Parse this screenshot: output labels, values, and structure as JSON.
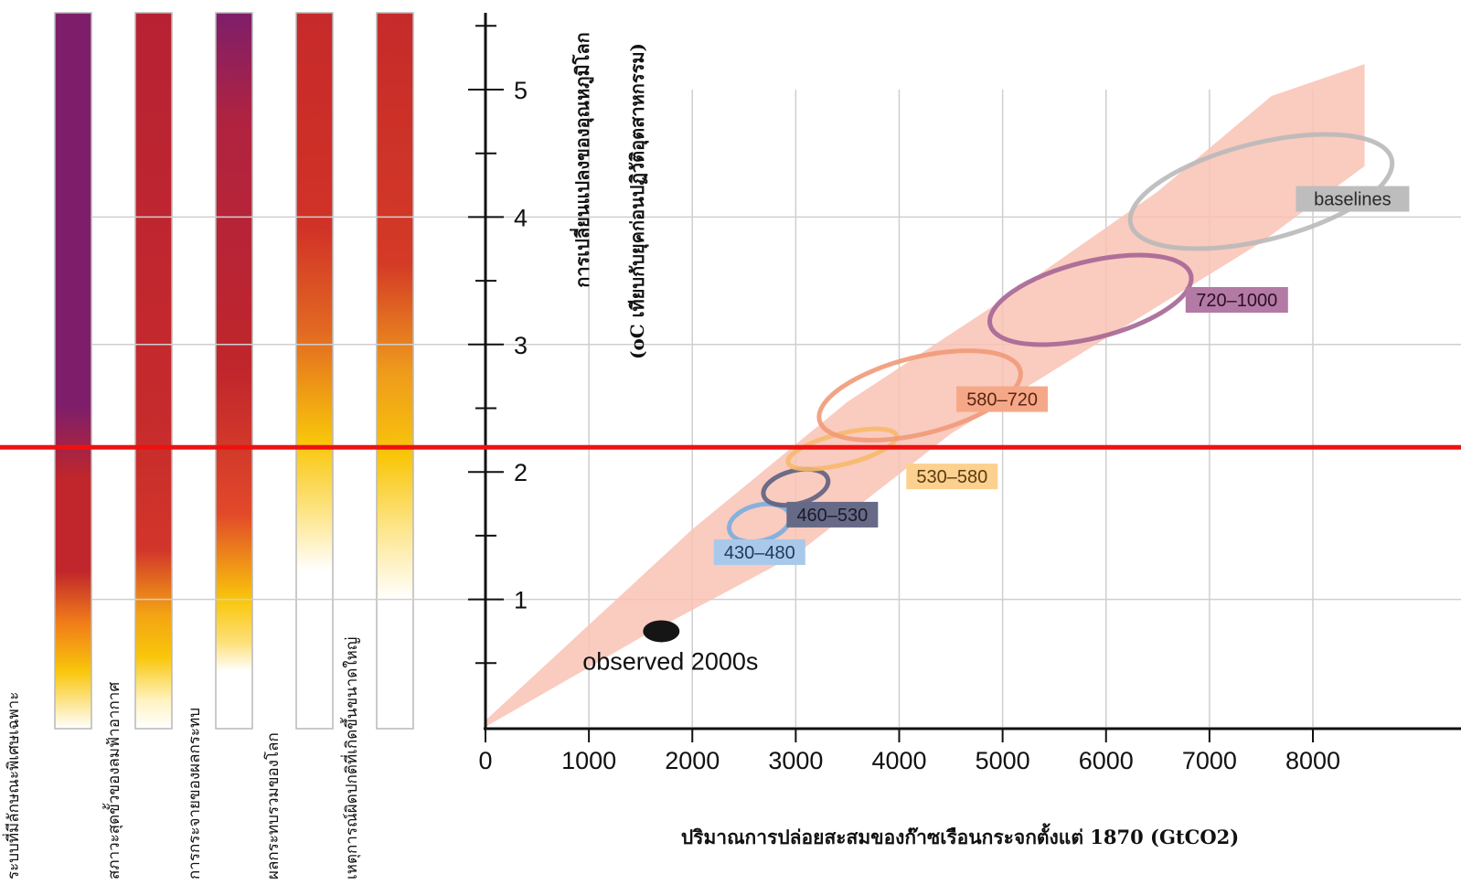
{
  "risk_bars": [
    {
      "label": "ระบบที่มีลักษณะพิเศษเฉพาะ",
      "top_color": "#7e1e6b",
      "stops": [
        [
          0.0,
          "#7e1e6b"
        ],
        [
          0.55,
          "#7e1e6b"
        ],
        [
          0.65,
          "#c0262b"
        ],
        [
          0.78,
          "#c0262b"
        ],
        [
          0.85,
          "#f07a1a"
        ],
        [
          0.92,
          "#f9c60a"
        ],
        [
          1.0,
          "#ffffff"
        ]
      ]
    },
    {
      "label": "สภาวะสุดขั้วของลมฟ้าอากาศ",
      "top_color": "#b72133",
      "stops": [
        [
          0.0,
          "#b72133"
        ],
        [
          0.55,
          "#c52a2c"
        ],
        [
          0.75,
          "#d2352a"
        ],
        [
          0.84,
          "#f4a314"
        ],
        [
          0.9,
          "#f9c60a"
        ],
        [
          0.96,
          "#fff3c0"
        ],
        [
          1.0,
          "#ffffff"
        ]
      ]
    },
    {
      "label": "การกระจายของผลกระทบ",
      "top_color": "#7e1e6b",
      "stops": [
        [
          0.0,
          "#7e1e6b"
        ],
        [
          0.15,
          "#b02340"
        ],
        [
          0.5,
          "#c0262b"
        ],
        [
          0.7,
          "#e2492a"
        ],
        [
          0.82,
          "#f9c60a"
        ],
        [
          0.88,
          "#fde07a"
        ],
        [
          0.92,
          "#ffffff"
        ],
        [
          1.0,
          "#ffffff"
        ]
      ]
    },
    {
      "label": "ผลกระทบรวมของโลก",
      "top_color": "#c62a2a",
      "stops": [
        [
          0.0,
          "#c62a2a"
        ],
        [
          0.3,
          "#d13227"
        ],
        [
          0.45,
          "#e36b22"
        ],
        [
          0.6,
          "#f9c60a"
        ],
        [
          0.7,
          "#fde58a"
        ],
        [
          0.78,
          "#ffffff"
        ],
        [
          1.0,
          "#ffffff"
        ]
      ]
    },
    {
      "label": "เหตุการณ์ผิดปกติที่เกิดขึ้นขนาดใหญ่",
      "top_color": "#c62a2a",
      "stops": [
        [
          0.0,
          "#c62a2a"
        ],
        [
          0.35,
          "#d43a26"
        ],
        [
          0.5,
          "#ee9a1c"
        ],
        [
          0.62,
          "#f9c60a"
        ],
        [
          0.72,
          "#fde58a"
        ],
        [
          0.82,
          "#ffffff"
        ],
        [
          1.0,
          "#ffffff"
        ]
      ]
    }
  ],
  "chart_data": {
    "type": "scatter",
    "title": "",
    "xlabel": "ปริมาณการปล่อยสะสมของก๊าซเรือนกระจกตั้งแต่ 1870 (GtCO2)",
    "ylabel_line1": "การเปลี่ยนแปลงของอุณหภูมิโลก",
    "ylabel_line2": "(oC เทียบกับยุคก่อนปฏิวัติอุตสาหกรรม)",
    "xlim": [
      0,
      9000
    ],
    "ylim": [
      0,
      5.5
    ],
    "x_ticks": [
      0,
      1000,
      2000,
      3000,
      4000,
      5000,
      6000,
      7000,
      8000
    ],
    "y_ticks": [
      1,
      2,
      3,
      4,
      5
    ],
    "grid": true,
    "observed": {
      "label": "observed 2000s",
      "x": 1700,
      "y": 0.75
    },
    "scenarios": [
      {
        "name": "430–480",
        "x_center": 2650,
        "y_center": 1.6,
        "x_radius": 300,
        "y_radius": 0.14,
        "color": "#7aaee0",
        "label_bg": "#a9c9ea",
        "label_color": "#1f3a5e"
      },
      {
        "name": "460–530",
        "x_center": 3000,
        "y_center": 1.88,
        "x_radius": 320,
        "y_radius": 0.13,
        "color": "#5e6180",
        "label_bg": "#666a86",
        "label_color": "#1a1b2a"
      },
      {
        "name": "530–580",
        "x_center": 3450,
        "y_center": 2.18,
        "x_radius": 540,
        "y_radius": 0.12,
        "color": "#f6b96a",
        "label_bg": "#fcd08e",
        "label_color": "#5a3a10"
      },
      {
        "name": "580–720",
        "x_center": 4200,
        "y_center": 2.6,
        "x_radius": 1000,
        "y_radius": 0.3,
        "color": "#f09a78",
        "label_bg": "#f5a887",
        "label_color": "#5a2413"
      },
      {
        "name": "720–1000",
        "x_center": 5850,
        "y_center": 3.35,
        "x_radius": 1000,
        "y_radius": 0.3,
        "color": "#a56695",
        "label_bg": "#b27aa4",
        "label_color": "#2d0f26"
      },
      {
        "name": "baselines",
        "x_center": 7500,
        "y_center": 4.2,
        "x_radius": 1300,
        "y_radius": 0.38,
        "color": "#b9b9b9",
        "label_bg": "#bdbdbd",
        "label_color": "#2a2a2a"
      }
    ],
    "marker_line": {
      "y": 2,
      "color": "#ee1111"
    },
    "band_color": "#f9c2b4"
  }
}
